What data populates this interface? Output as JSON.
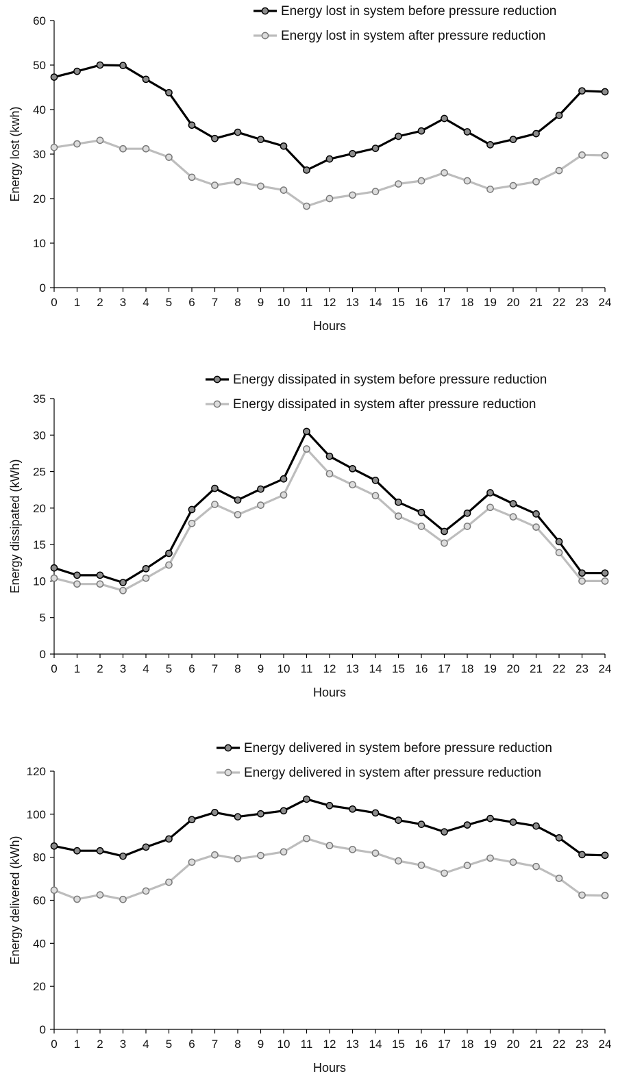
{
  "colors": {
    "before": "#000000",
    "before_marker_fill": "#8c8c8c",
    "after": "#bdbdbd",
    "after_marker_fill": "#dcdcdc",
    "axis": "#000000"
  },
  "chart_data": [
    {
      "type": "line",
      "xlabel": "Hours",
      "ylabel": "Energy lost (kwh)",
      "xlim": [
        0,
        24
      ],
      "ylim": [
        0,
        60
      ],
      "yticks": [
        0,
        10,
        20,
        30,
        40,
        50,
        60
      ],
      "grid": false,
      "legend": "top-right",
      "x": [
        0,
        1,
        2,
        3,
        4,
        5,
        6,
        7,
        8,
        9,
        10,
        11,
        12,
        13,
        14,
        15,
        16,
        17,
        18,
        19,
        20,
        21,
        22,
        23,
        24
      ],
      "series": [
        {
          "name": "Energy lost in system before pressure reduction",
          "values": [
            47.3,
            48.6,
            50.0,
            49.9,
            46.8,
            43.8,
            36.5,
            33.5,
            34.9,
            33.3,
            31.8,
            26.4,
            28.9,
            30.1,
            31.3,
            34.0,
            35.2,
            38.0,
            35.0,
            32.1,
            33.3,
            34.6,
            38.7,
            44.2,
            44.0
          ]
        },
        {
          "name": "Energy lost in system after pressure reduction",
          "values": [
            31.5,
            32.3,
            33.1,
            31.2,
            31.2,
            29.3,
            24.8,
            23.0,
            23.8,
            22.8,
            21.9,
            18.3,
            20.0,
            20.8,
            21.6,
            23.3,
            24.0,
            25.8,
            24.0,
            22.1,
            22.9,
            23.8,
            26.3,
            29.8,
            29.7
          ]
        }
      ]
    },
    {
      "type": "line",
      "xlabel": "Hours",
      "ylabel": "Energy dissipated (kWh)",
      "xlim": [
        0,
        24
      ],
      "ylim": [
        0,
        35
      ],
      "yticks": [
        0,
        5,
        10,
        15,
        20,
        25,
        30,
        35
      ],
      "grid": false,
      "legend": "top-right",
      "x": [
        0,
        1,
        2,
        3,
        4,
        5,
        6,
        7,
        8,
        9,
        10,
        11,
        12,
        13,
        14,
        15,
        16,
        17,
        18,
        19,
        20,
        21,
        22,
        23,
        24
      ],
      "series": [
        {
          "name": "Energy dissipated in system before pressure reduction",
          "values": [
            11.8,
            10.8,
            10.8,
            9.8,
            11.7,
            13.8,
            19.8,
            22.7,
            21.1,
            22.6,
            24.0,
            30.5,
            27.1,
            25.4,
            23.8,
            20.8,
            19.4,
            16.8,
            19.3,
            22.1,
            20.6,
            19.2,
            15.4,
            11.1,
            11.1
          ]
        },
        {
          "name": "Energy dissipated in system after pressure reduction",
          "values": [
            10.4,
            9.6,
            9.6,
            8.7,
            10.4,
            12.2,
            17.9,
            20.5,
            19.1,
            20.4,
            21.8,
            28.1,
            24.7,
            23.2,
            21.7,
            18.9,
            17.5,
            15.2,
            17.5,
            20.1,
            18.8,
            17.4,
            13.9,
            10.0,
            10.0
          ]
        }
      ]
    },
    {
      "type": "line",
      "xlabel": "Hours",
      "ylabel": "Energy delivered (kWh)",
      "xlim": [
        0,
        24
      ],
      "ylim": [
        0,
        120
      ],
      "yticks": [
        0,
        20,
        40,
        60,
        80,
        100,
        120
      ],
      "grid": false,
      "legend": "top-right",
      "x": [
        0,
        1,
        2,
        3,
        4,
        5,
        6,
        7,
        8,
        9,
        10,
        11,
        12,
        13,
        14,
        15,
        16,
        17,
        18,
        19,
        20,
        21,
        22,
        23,
        24
      ],
      "series": [
        {
          "name": "Energy delivered in system before pressure reduction",
          "values": [
            85.2,
            83.0,
            83.0,
            80.5,
            84.7,
            88.5,
            97.5,
            100.8,
            98.8,
            100.2,
            101.6,
            107.0,
            104.0,
            102.4,
            100.6,
            97.2,
            95.3,
            91.8,
            95.0,
            98.0,
            96.3,
            94.5,
            89.0,
            81.2,
            80.9
          ]
        },
        {
          "name": "Energy delivered in system after pressure reduction",
          "values": [
            64.7,
            60.5,
            62.5,
            60.4,
            64.3,
            68.4,
            77.7,
            81.1,
            79.3,
            80.8,
            82.5,
            88.7,
            85.4,
            83.6,
            81.9,
            78.3,
            76.3,
            72.6,
            76.2,
            79.6,
            77.7,
            75.7,
            70.2,
            62.4,
            62.2
          ]
        }
      ]
    }
  ]
}
